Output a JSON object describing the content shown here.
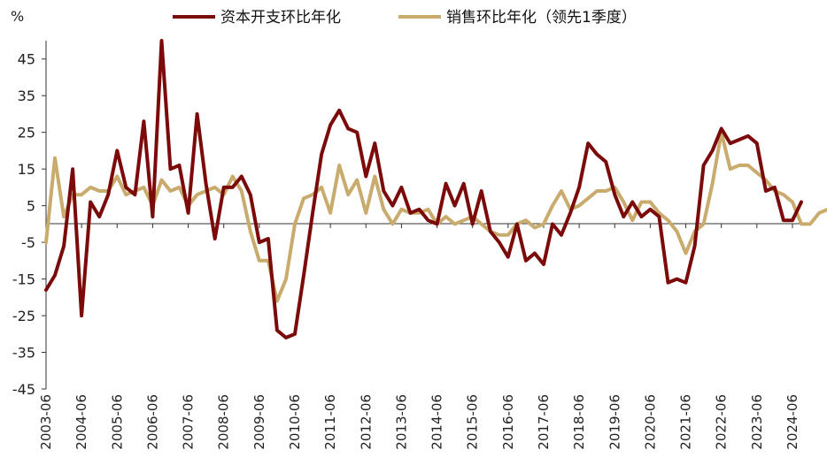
{
  "chart_data": {
    "type": "line",
    "y_unit_label": "%",
    "ylim": [
      -45,
      50
    ],
    "y_ticks": [
      45,
      35,
      25,
      15,
      5,
      -5,
      -15,
      -25,
      -35,
      -45
    ],
    "x_tick_labels": [
      "2003-06",
      "2004-06",
      "2005-06",
      "2006-06",
      "2007-06",
      "2008-06",
      "2009-06",
      "2010-06",
      "2011-06",
      "2012-06",
      "2013-06",
      "2014-06",
      "2015-06",
      "2016-06",
      "2017-06",
      "2018-06",
      "2019-06",
      "2020-06",
      "2021-06",
      "2022-06",
      "2023-06",
      "2024-06"
    ],
    "x_start": "2003-06",
    "x_end": "2024-09",
    "grid": false,
    "legend_position": "top",
    "series": [
      {
        "name": "资本开支环比年化",
        "color": "#7b0b0b",
        "values": [
          -18,
          -14,
          -6,
          15,
          -25,
          6,
          2,
          8,
          20,
          10,
          8,
          28,
          2,
          50,
          15,
          16,
          3,
          30,
          11,
          -4,
          10,
          10,
          13,
          8,
          -5,
          -4,
          -29,
          -31,
          -30,
          -14,
          3,
          19,
          27,
          31,
          26,
          25,
          13,
          22,
          9,
          5,
          10,
          3,
          4,
          1,
          0,
          11,
          5,
          11,
          0,
          9,
          -2,
          -5,
          -9,
          0,
          -10,
          -8,
          -11,
          0,
          -3,
          3,
          10,
          22,
          19,
          17,
          8,
          2,
          6,
          2,
          4,
          2,
          -16,
          -15,
          -16,
          -6,
          16,
          20,
          26,
          22,
          23,
          24,
          22,
          9,
          10,
          1,
          1,
          6,
          null
        ]
      },
      {
        "name": "销售环比年化（领先1季度）",
        "color": "#c9ab6e",
        "values": [
          -5,
          18,
          2,
          8,
          8,
          10,
          9,
          9,
          13,
          8,
          9,
          10,
          5,
          12,
          9,
          10,
          5,
          8,
          9,
          10,
          8,
          13,
          9,
          -2,
          -10,
          -10,
          -21,
          -15,
          0,
          7,
          8,
          10,
          3,
          16,
          8,
          12,
          3,
          13,
          4,
          0,
          4,
          3,
          3,
          4,
          0,
          2,
          0,
          1,
          2,
          0,
          -2,
          -3,
          -3,
          0,
          1,
          -1,
          0,
          5,
          9,
          4,
          5,
          7,
          9,
          9,
          10,
          6,
          1,
          6,
          6,
          3,
          1,
          -2,
          -8,
          -2,
          0,
          11,
          25,
          15,
          16,
          16,
          14,
          12,
          9,
          8,
          6,
          0,
          0,
          3,
          4
        ]
      }
    ]
  }
}
